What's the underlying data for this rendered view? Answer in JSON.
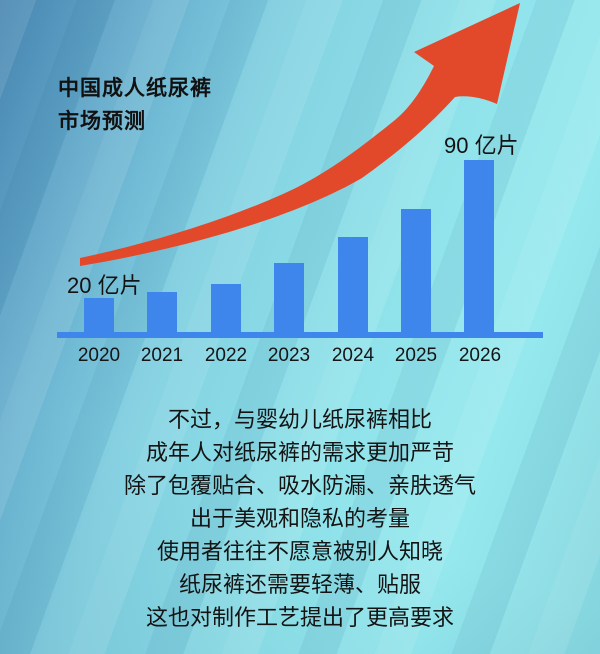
{
  "header": {
    "title_line1": "中国成人纸尿裤",
    "title_line2": "市场预测"
  },
  "chart_data": {
    "type": "bar",
    "title": "中国成人纸尿裤市场预测",
    "categories": [
      "2020",
      "2021",
      "2022",
      "2023",
      "2024",
      "2025",
      "2026"
    ],
    "values": [
      20,
      23,
      27,
      38,
      51,
      65,
      90
    ],
    "unit": "亿片",
    "first_bar_label": "20 亿片",
    "last_bar_label": "90 亿片",
    "bar_color": "#3f86ec",
    "axis_color": "#3f86ec",
    "trend_arrow_color": "#e2492a",
    "ylabel": "",
    "xlabel": "",
    "ylim": [
      0,
      100
    ],
    "grid": false,
    "legend": false
  },
  "body": {
    "lines": [
      "不过，与婴幼儿纸尿裤相比",
      "成年人对纸尿裤的需求更加严苛",
      "除了包覆贴合、吸水防漏、亲肤透气",
      "出于美观和隐私的考量",
      "使用者往往不愿意被别人知晓",
      "纸尿裤还需要轻薄、贴服",
      "这也对制作工艺提出了更高要求"
    ],
    "text_color": "#141414"
  }
}
